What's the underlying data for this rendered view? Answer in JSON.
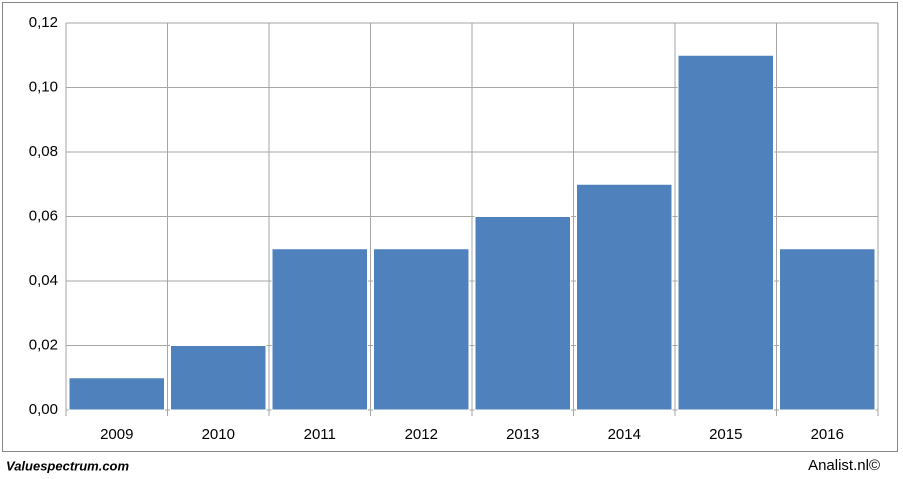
{
  "chart_data": {
    "type": "bar",
    "categories": [
      "2009",
      "2010",
      "2011",
      "2012",
      "2013",
      "2014",
      "2015",
      "2016"
    ],
    "values": [
      0.01,
      0.02,
      0.05,
      0.05,
      0.06,
      0.07,
      0.11,
      0.05
    ],
    "color": "#4f81bd",
    "ylim": [
      0,
      0.12
    ],
    "yticks": [
      {
        "value": 0,
        "label": "0,00"
      },
      {
        "value": 0.02,
        "label": "0,02"
      },
      {
        "value": 0.04,
        "label": "0,04"
      },
      {
        "value": 0.06,
        "label": "0,06"
      },
      {
        "value": 0.08,
        "label": "0,08"
      },
      {
        "value": 0.1,
        "label": "0,10"
      },
      {
        "value": 0.12,
        "label": "0,12"
      }
    ],
    "grid": true,
    "annotations": [
      "Valuespectrum.com",
      "Analist.nl©"
    ]
  }
}
